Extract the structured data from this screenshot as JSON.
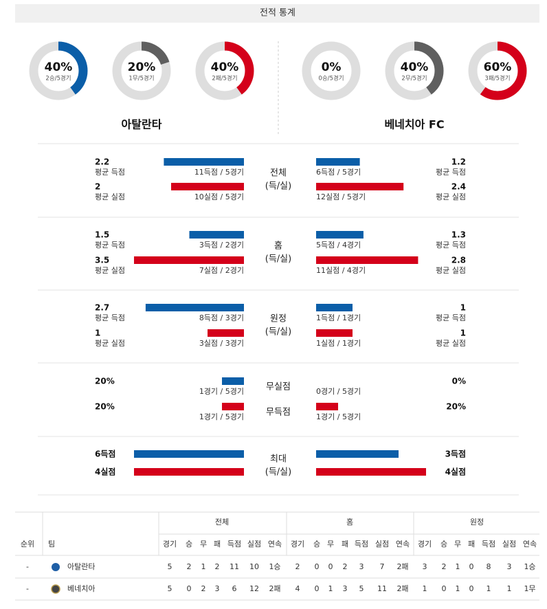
{
  "header": {
    "title": "전적 통계"
  },
  "teams": [
    {
      "name": "아탈란타",
      "donuts": [
        {
          "value": 40,
          "value_label": "40%",
          "detail": "2승/5경기",
          "color": "#0b5ea8"
        },
        {
          "value": 20,
          "value_label": "20%",
          "detail": "1무/5경기",
          "color": "#5f5f5f"
        },
        {
          "value": 40,
          "value_label": "40%",
          "detail": "2패/5경기",
          "color": "#d4001a"
        }
      ]
    },
    {
      "name": "베네치아 FC",
      "donuts": [
        {
          "value": 0,
          "value_label": "0%",
          "detail": "0승/5경기",
          "color": "#0b5ea8"
        },
        {
          "value": 40,
          "value_label": "40%",
          "detail": "2무/5경기",
          "color": "#5f5f5f"
        },
        {
          "value": 60,
          "value_label": "60%",
          "detail": "3패/5경기",
          "color": "#d4001a"
        }
      ]
    }
  ],
  "sections": [
    {
      "title": "전체",
      "subtitle": "(득/실)",
      "rows": [
        {
          "color": "#0b5ea8",
          "left": {
            "value": 2.2,
            "label": "평균 득점",
            "detail": "11득점 / 5경기"
          },
          "right": {
            "value": 1.2,
            "label": "평균 득점",
            "detail": "6득점 / 5경기"
          }
        },
        {
          "color": "#d4001a",
          "left": {
            "value": 2,
            "label": "평균 실점",
            "detail": "10실점 / 5경기"
          },
          "right": {
            "value": 2.4,
            "label": "평균 실점",
            "detail": "12실점 / 5경기"
          }
        }
      ]
    },
    {
      "title": "홈",
      "subtitle": "(득/실)",
      "rows": [
        {
          "color": "#0b5ea8",
          "left": {
            "value": 1.5,
            "label": "평균 득점",
            "detail": "3득점 / 2경기"
          },
          "right": {
            "value": 1.3,
            "label": "평균 득점",
            "detail": "5득점 / 4경기"
          }
        },
        {
          "color": "#d4001a",
          "left": {
            "value": 3.5,
            "label": "평균 실점",
            "detail": "7실점 / 2경기"
          },
          "right": {
            "value": 2.8,
            "label": "평균 실점",
            "detail": "11실점 / 4경기"
          }
        }
      ]
    },
    {
      "title": "원정",
      "subtitle": "(득/실)",
      "rows": [
        {
          "color": "#0b5ea8",
          "left": {
            "value": 2.7,
            "label": "평균 득점",
            "detail": "8득점 / 3경기"
          },
          "right": {
            "value": 1,
            "label": "평균 득점",
            "detail": "1득점 / 1경기"
          }
        },
        {
          "color": "#d4001a",
          "left": {
            "value": 1,
            "label": "평균 실점",
            "detail": "3실점 / 3경기"
          },
          "right": {
            "value": 1,
            "label": "평균 실점",
            "detail": "1실점 / 1경기"
          }
        }
      ]
    },
    {
      "rows": [
        {
          "title": "무실점",
          "color": "#0b5ea8",
          "left": {
            "value": 20,
            "value_label": "20%",
            "detail": "1경기 / 5경기"
          },
          "right": {
            "value": 0,
            "value_label": "0%",
            "detail": "0경기 / 5경기"
          }
        },
        {
          "title": "무득점",
          "color": "#d4001a",
          "left": {
            "value": 20,
            "value_label": "20%",
            "detail": "1경기 / 5경기"
          },
          "right": {
            "value": 20,
            "value_label": "20%",
            "detail": "1경기 / 5경기"
          }
        }
      ]
    },
    {
      "title": "최대",
      "subtitle": "(득/실)",
      "rows": [
        {
          "color": "#0b5ea8",
          "left": {
            "value": 6,
            "value_label": "6득점"
          },
          "right": {
            "value": 3,
            "value_label": "3득점"
          }
        },
        {
          "color": "#d4001a",
          "left": {
            "value": 4,
            "value_label": "4실점"
          },
          "right": {
            "value": 4,
            "value_label": "4실점"
          }
        }
      ]
    }
  ],
  "table": {
    "rank_header": "순위",
    "team_header": "팀",
    "group_headers": [
      "전체",
      "홈",
      "원정"
    ],
    "columns": [
      "경기",
      "승",
      "무",
      "패",
      "득점",
      "실점",
      "연속"
    ],
    "rows": [
      {
        "rank": "-",
        "team": "아탈란타",
        "cells": [
          5,
          2,
          1,
          2,
          11,
          10,
          "1승",
          2,
          0,
          0,
          2,
          3,
          7,
          "2패",
          3,
          2,
          1,
          0,
          8,
          3,
          "1승"
        ]
      },
      {
        "rank": "-",
        "team": "베네치아",
        "cells": [
          5,
          0,
          2,
          3,
          6,
          12,
          "2패",
          4,
          0,
          1,
          3,
          5,
          11,
          "2패",
          1,
          0,
          1,
          0,
          1,
          1,
          "1무"
        ]
      }
    ]
  }
}
